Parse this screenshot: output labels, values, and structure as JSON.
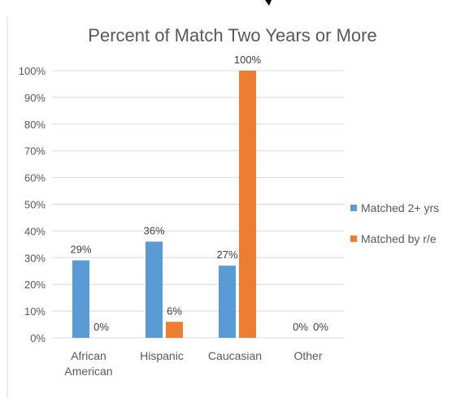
{
  "chart_data": {
    "type": "bar",
    "title": "Percent of Match Two Years or More",
    "xlabel": "",
    "ylabel": "",
    "categories": [
      [
        "African",
        "American"
      ],
      [
        "Hispanic"
      ],
      [
        "Caucasian"
      ],
      [
        "Other"
      ]
    ],
    "series": [
      {
        "name": "Matched 2+ yrs",
        "color": "#5b9bd5",
        "values": [
          29,
          36,
          27,
          0
        ],
        "labels": [
          "29%",
          "36%",
          "27%",
          "0%"
        ]
      },
      {
        "name": "Matched by r/e",
        "color": "#ed7d31",
        "values": [
          0,
          6,
          100,
          0
        ],
        "labels": [
          "0%",
          "6%",
          "100%",
          "0%"
        ]
      }
    ],
    "ylim": [
      0,
      100
    ],
    "yticks": [
      0,
      10,
      20,
      30,
      40,
      50,
      60,
      70,
      80,
      90,
      100
    ],
    "ytick_labels": [
      "0%",
      "10%",
      "20%",
      "30%",
      "40%",
      "50%",
      "60%",
      "70%",
      "80%",
      "90%",
      "100%"
    ],
    "grid": true,
    "legend_position": "right"
  }
}
